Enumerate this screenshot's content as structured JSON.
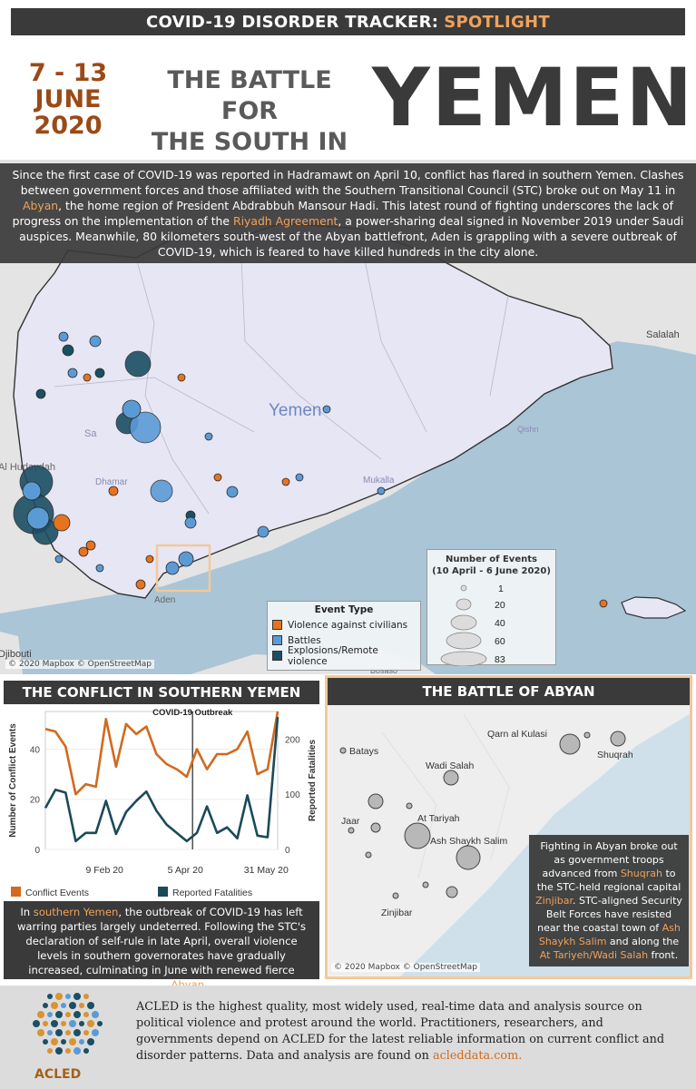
{
  "header": {
    "banner_prefix": "COVID-19 DISORDER TRACKER:",
    "banner_accent": "SPOTLIGHT",
    "date_line1": "7 - 13",
    "date_line2": "JUNE",
    "date_line3": "2020",
    "title_line1": "THE BATTLE FOR",
    "title_line2": "THE SOUTH IN",
    "title_big": "YEMEN"
  },
  "intro": {
    "part1": "Since the first case of COVID-19 was reported in Hadramawt on April 10, conflict has flared in southern Yemen. Clashes between government forces and those affiliated with the Southern Transitional Council (STC) broke out on May 11 in ",
    "abyan": "Abyan",
    "part2": ", the home region of President Abdrabbuh Mansour Hadi. This latest round of fighting underscores the lack of progress on the implementation of the ",
    "riyadh": "Riyadh Agreement",
    "part3": ", a power-sharing deal signed in November 2019 under Saudi auspices. Meanwhile, 80 kilometers south-west of the Abyan battlefront, Aden is grappling with a severe outbreak of COVID-19, which is feared to have killed hundreds in the city alone."
  },
  "map": {
    "country_label": "Yemen",
    "places": [
      "Salalah",
      "Qishn",
      "Mukalla",
      "Dhamar",
      "Sa",
      "Al Hudaydah",
      "Aden",
      "Djibouti",
      "Bosaso"
    ],
    "credit": "© 2020 Mapbox © OpenStreetMap",
    "legend_size": {
      "title_line1": "Number of Events",
      "title_line2": "(10 April - 6 June 2020)",
      "sizes": [
        "1",
        "20",
        "40",
        "60",
        "83"
      ]
    },
    "legend_type": {
      "title": "Event Type",
      "items": [
        {
          "label": "Violence against civilians",
          "color": "#e8731e"
        },
        {
          "label": "Battles",
          "color": "#5b9bd5"
        },
        {
          "label": "Explosions/Remote violence",
          "color": "#1b4f63"
        }
      ]
    }
  },
  "conflict_section": {
    "heading": "THE CONFLICT IN SOUTHERN YEMEN",
    "text_part1": "In ",
    "text_hl1": "southern Yemen",
    "text_part2": ", the outbreak of COVID-19 has left warring parties largely undeterred. Following the STC's declaration of self-rule in late April, overall violence levels in southern governorates have gradually increased, culminating in June with renewed fierce clashes in ",
    "text_hl2": "Abyan",
    "text_part3": "."
  },
  "chart_data": {
    "type": "line",
    "x": [
      "2019-12-30",
      "2020-01-06",
      "2020-01-13",
      "2020-01-20",
      "2020-01-27",
      "2020-02-03",
      "2020-02-10",
      "2020-02-17",
      "2020-02-24",
      "2020-03-02",
      "2020-03-09",
      "2020-03-16",
      "2020-03-23",
      "2020-03-30",
      "2020-04-06",
      "2020-04-13",
      "2020-04-20",
      "2020-04-27",
      "2020-05-04",
      "2020-05-11",
      "2020-05-18",
      "2020-05-25",
      "2020-06-01",
      "2020-06-08"
    ],
    "series": [
      {
        "name": "Conflict Events",
        "color": "#d2691e",
        "axis": "left",
        "values": [
          48,
          47,
          41,
          22,
          26,
          25,
          52,
          33,
          50,
          46,
          49,
          38,
          34,
          32,
          29,
          40,
          32,
          38,
          38,
          40,
          47,
          30,
          32,
          55
        ]
      },
      {
        "name": "Reported Fatalities",
        "color": "#1b4a5a",
        "axis": "right",
        "values": [
          75,
          108,
          103,
          15,
          30,
          30,
          88,
          28,
          68,
          88,
          105,
          70,
          45,
          30,
          15,
          30,
          78,
          30,
          40,
          20,
          98,
          25,
          22,
          240
        ]
      }
    ],
    "ylabel_left": "Number of Conflict Events",
    "ylabel_right": "Reported Fatalities",
    "yticks_left": [
      "0",
      "20",
      "40"
    ],
    "yticks_right": [
      "0",
      "100",
      "200"
    ],
    "ylim_left": [
      0,
      55
    ],
    "ylim_right": [
      0,
      250
    ],
    "xticks": [
      {
        "date": "2020-02-09",
        "label": "9 Feb 20"
      },
      {
        "date": "2020-04-05",
        "label": "5 Apr 20"
      },
      {
        "date": "2020-05-31",
        "label": "31 May 20"
      }
    ],
    "annotation": {
      "date": "2020-04-10",
      "label": "COVID-19 Outbreak"
    },
    "legend_placement": "bottom"
  },
  "abyan_section": {
    "heading": "THE BATTLE OF ABYAN",
    "places": [
      "Batays",
      "Qarn al Kulasi",
      "Shuqrah",
      "Wadi Salah",
      "Jaar",
      "At Tariyah",
      "Ash Shaykh Salim",
      "Zinjibar"
    ],
    "credit": "© 2020 Mapbox © OpenStreetMap",
    "text_part1": "Fighting in Abyan broke out as government troops advanced from ",
    "text_hl1": "Shuqrah",
    "text_part2": " to the STC-held regional capital ",
    "text_hl2": "Zinjibar",
    "text_part3": ". STC-aligned Security Belt Forces have resisted near the coastal town of ",
    "text_hl3": "Ash Shaykh Salim",
    "text_part4": " and along the ",
    "text_hl4": "At Tariyeh/Wadi Salah",
    "text_part5": " front."
  },
  "footer": {
    "text": "ACLED is the highest quality, most widely used, real-time data and analysis source on political violence and protest around the world. Practitioners, researchers, and governments depend on ACLED for the latest reliable information on current conflict and disorder patterns. Data and analysis are found on ",
    "link": "acleddata.com.",
    "brand": "ACLED"
  },
  "colors": {
    "accent_orange": "#f0a25a",
    "dark_banner": "#3a3a3a",
    "land": "#e6e6f4",
    "sea": "#aac5d6"
  }
}
